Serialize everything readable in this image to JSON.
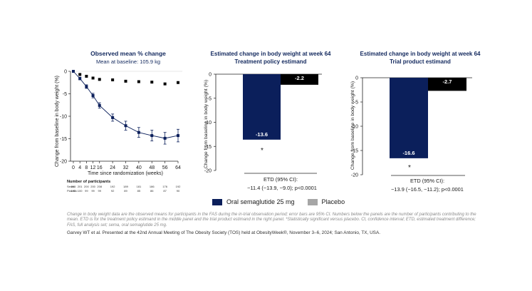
{
  "colors": {
    "semaglutide": "#0b1f5b",
    "placeholder": "#a6a6a6",
    "title": "#13295e"
  },
  "panel1": {
    "title": "Observed mean % change",
    "subtitle": "Mean at baseline: 105.9 kg",
    "ylabel": "Change from baseline in body weight (%)",
    "xlabel": "Time since randomization (weeks)",
    "participants_heading": "Number of participants",
    "row_labels": [
      "Sema",
      "Placebo"
    ],
    "sema_counts": [
      "205",
      "201",
      "200",
      "200",
      "208",
      "",
      "192",
      "",
      "189",
      "",
      "181",
      "",
      "186",
      "",
      "176",
      "",
      "192"
    ],
    "placebo_counts": [
      "102",
      "100",
      "99",
      "99",
      "99",
      "",
      "92",
      "",
      "89",
      "",
      "85",
      "",
      "86",
      "",
      "87",
      "",
      "90"
    ]
  },
  "panel2": {
    "title_line1": "Estimated change in body weight at week 64",
    "title_line2": "Treatment policy estimand",
    "ylabel": "Change from baseline in body weight (%)",
    "etd_label": "ETD (95% CI):",
    "etd_value": "−11.4 (−13.9, −9.0); p<0.0001",
    "star": "*"
  },
  "panel3": {
    "title_line1": "Estimated change in body weight at week 64",
    "title_line2": "Trial product estimand",
    "ylabel": "Change from baseline in body weight (%)",
    "etd_label": "ETD (95% CI):",
    "etd_value": "−13.9 (−16.5, −11.2); p<0.0001",
    "star": "*"
  },
  "legend": {
    "sema": "Oral semaglutide 25 mg",
    "placebo": "Placebo"
  },
  "footnote": "Change in body weight data are the observed means for participants in the FAS during the in-trial  observation period; error bars are 95% CI. Numbers below the panels are the number of participants contributing to the mean. ETD is for the treatment policy estimand in the middle panel and the trial product estimand in the right  panel. *Statistically significant versus placebo. CI, confidence interval; ETD, estimated treatment difference; FAS, full analysis set; sema, oral semaglutide 25 mg.",
  "citation": "Garvey WT et al. Presented at the 42nd Annual Meeting of The Obesity Society (TOS) held at ObesityWeek®, November 3–6, 2024; San Antonio, TX, USA.",
  "chart_data": [
    {
      "type": "line",
      "title": "Observed mean % change",
      "subtitle": "Mean at baseline: 105.9 kg",
      "xlabel": "Time since randomization (weeks)",
      "ylabel": "Change from baseline in body weight (%)",
      "xticks": [
        0,
        4,
        8,
        12,
        16,
        24,
        32,
        40,
        48,
        56,
        64
      ],
      "ylim": [
        -20,
        0
      ],
      "yticks": [
        0,
        -5,
        -10,
        -15,
        -20
      ],
      "series": [
        {
          "name": "Oral semaglutide 25 mg",
          "x": [
            0,
            4,
            8,
            12,
            16,
            24,
            32,
            40,
            48,
            56,
            64
          ],
          "y": [
            0,
            -1.6,
            -3.4,
            -5.4,
            -7.6,
            -10.3,
            -12.1,
            -13.6,
            -14.3,
            -14.9,
            -14.3
          ],
          "err": [
            0.2,
            0.3,
            0.4,
            0.5,
            0.6,
            0.8,
            1.0,
            1.1,
            1.2,
            1.3,
            1.4
          ]
        },
        {
          "name": "Placebo",
          "x": [
            0,
            4,
            8,
            12,
            16,
            24,
            32,
            40,
            48,
            56,
            64
          ],
          "y": [
            0,
            -0.7,
            -1.1,
            -1.5,
            -1.8,
            -1.9,
            -2.2,
            -2.3,
            -2.4,
            -2.8,
            -2.5
          ],
          "err": [
            0.2,
            0.4,
            0.5,
            0.6,
            0.7,
            1.0,
            1.1,
            1.3,
            1.4,
            1.7,
            1.6
          ]
        }
      ]
    },
    {
      "type": "bar",
      "title": "Estimated change in body weight at week 64",
      "subtitle": "Treatment policy estimand",
      "ylabel": "Change from baseline in body weight (%)",
      "ylim": [
        -20,
        0
      ],
      "yticks": [
        0,
        -5,
        -10,
        -15,
        -20
      ],
      "series": [
        {
          "name": "Oral semaglutide 25 mg",
          "values": [
            -13.6
          ],
          "labels": [
            "-13.6"
          ]
        },
        {
          "name": "Placebo",
          "values": [
            -2.2
          ],
          "labels": [
            "-2.2"
          ]
        }
      ]
    },
    {
      "type": "bar",
      "title": "Estimated change in body weight at week 64",
      "subtitle": "Trial product estimand",
      "ylabel": "Change from baseline in body weight (%)",
      "ylim": [
        -20,
        0
      ],
      "yticks": [
        0,
        -5,
        -10,
        -15,
        -20
      ],
      "series": [
        {
          "name": "Oral semaglutide 25 mg",
          "values": [
            -16.6
          ],
          "labels": [
            "-16.6"
          ]
        },
        {
          "name": "Placebo",
          "values": [
            -2.7
          ],
          "labels": [
            "-2.7"
          ]
        }
      ]
    }
  ]
}
